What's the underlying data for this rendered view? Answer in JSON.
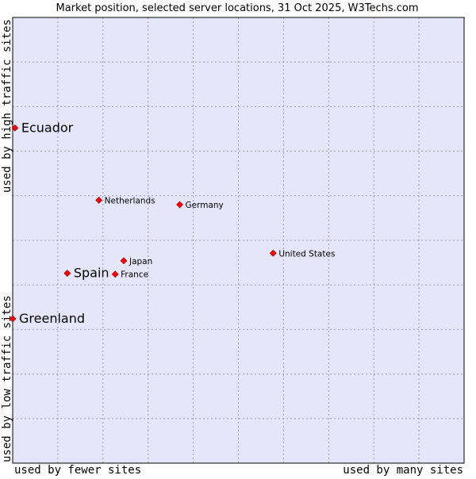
{
  "chart_data": {
    "type": "scatter",
    "title": "Market position, selected server locations, 31 Oct 2025, W3Techs.com",
    "xlabel_left": "used by fewer sites",
    "xlabel_right": "used by many sites",
    "ylabel_bottom": "used by low traffic sites",
    "ylabel_top": "used by high traffic sites",
    "xlim": [
      0,
      100
    ],
    "ylim": [
      0,
      100
    ],
    "grid": true,
    "grid_divisions": 10,
    "points": [
      {
        "label": "Ecuador",
        "x": 0.5,
        "y": 75.2,
        "highlight": true
      },
      {
        "label": "Netherlands",
        "x": 19.1,
        "y": 59.0,
        "highlight": false
      },
      {
        "label": "Germany",
        "x": 37.0,
        "y": 58.0,
        "highlight": false
      },
      {
        "label": "United States",
        "x": 57.7,
        "y": 47.1,
        "highlight": false
      },
      {
        "label": "Japan",
        "x": 24.6,
        "y": 45.4,
        "highlight": false
      },
      {
        "label": "Spain",
        "x": 12.1,
        "y": 42.6,
        "highlight": true
      },
      {
        "label": "France",
        "x": 22.7,
        "y": 42.4,
        "highlight": false
      },
      {
        "label": "Greenland",
        "x": 0.0,
        "y": 32.4,
        "highlight": true
      }
    ]
  },
  "colors": {
    "plot_background": "#e6e6fa",
    "grid": "#9a9aaa",
    "marker": "#ff0000",
    "marker_edge": "#990000",
    "text": "#000000"
  }
}
